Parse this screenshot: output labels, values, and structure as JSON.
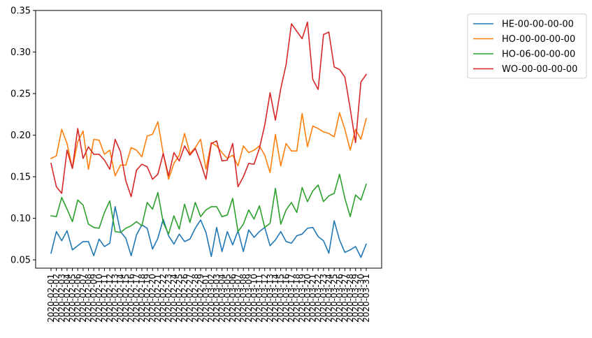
{
  "chart_data": {
    "type": "line",
    "title": "",
    "xlabel": "",
    "ylabel": "",
    "ylim": [
      0.04,
      0.35
    ],
    "yticks": [
      "0.05",
      "0.10",
      "0.15",
      "0.20",
      "0.25",
      "0.30",
      "0.35"
    ],
    "yticks_values": [
      0.05,
      0.1,
      0.15,
      0.2,
      0.25,
      0.3,
      0.35
    ],
    "legend_position": "outside-top-right",
    "x": [
      "2020-02-01",
      "2020-02-02",
      "2020-02-03",
      "2020-02-04",
      "2020-02-05",
      "2020-02-06",
      "2020-02-07",
      "2020-02-08",
      "2020-02-09",
      "2020-02-10",
      "2020-02-11",
      "2020-02-12",
      "2020-02-13",
      "2020-02-14",
      "2020-02-15",
      "2020-02-16",
      "2020-02-17",
      "2020-02-18",
      "2020-02-19",
      "2020-02-20",
      "2020-02-21",
      "2020-02-22",
      "2020-02-23",
      "2020-02-24",
      "2020-02-25",
      "2020-02-26",
      "2020-02-27",
      "2020-02-28",
      "2020-02-29",
      "2020-03-01",
      "2020-03-02",
      "2020-03-03",
      "2020-03-04",
      "2020-03-05",
      "2020-03-06",
      "2020-03-07",
      "2020-03-08",
      "2020-03-09",
      "2020-03-10",
      "2020-03-11",
      "2020-03-12",
      "2020-03-13",
      "2020-03-14",
      "2020-03-15",
      "2020-03-16",
      "2020-03-17",
      "2020-03-18",
      "2020-03-19",
      "2020-03-20",
      "2020-03-21",
      "2020-03-22",
      "2020-03-23",
      "2020-03-24",
      "2020-03-25",
      "2020-03-26",
      "2020-03-27",
      "2020-03-28",
      "2020-03-29",
      "2020-03-30",
      "2020-03-31"
    ],
    "xtick_labels": [
      "2020-02-01",
      "2020-02-02",
      "2020-02-03",
      "2020-02-04",
      "2020-02-05",
      "2020-02-06",
      "2020-02-07",
      "2020-02-08",
      "2020-02-09",
      "2020-02-10",
      "2020-02-11",
      "2020-02-12",
      "2020-02-13",
      "2020-02-14",
      "2020-02-15",
      "2020-02-16",
      "2020-02-17",
      "2020-02-18",
      "2020-02-19",
      "2020-02-20",
      "2020-02-21",
      "2020-02-22",
      "2020-02-23",
      "2020-02-24",
      "2020-02-25",
      "2020-02-26",
      "2020-02-27",
      "2020-02-28",
      "2020-02-29",
      "2020-03-01",
      "2020-03-02",
      "2020-03-03",
      "2020-03-04",
      "2020-03-05",
      "2020-03-06",
      "2020-03-07",
      "2020-03-08",
      "2020-03-09",
      "2020-03-10",
      "2020-03-11",
      "2020-03-12",
      "2020-03-13",
      "2020-03-14",
      "2020-03-15",
      "2020-03-16",
      "2020-03-17",
      "2020-03-18",
      "2020-03-19",
      "2020-03-20",
      "2020-03-21",
      "2020-03-22",
      "2020-03-23",
      "2020-03-24",
      "2020-03-25",
      "2020-03-26",
      "2020-03-27",
      "2020-03-28",
      "2020-03-29",
      "2020-03-30",
      "2020-03-31"
    ],
    "series": [
      {
        "name": "HE-00-00-00-00",
        "color": "#1f77b4",
        "values": [
          0.058,
          0.084,
          0.073,
          0.085,
          0.062,
          0.067,
          0.072,
          0.072,
          0.055,
          0.075,
          0.066,
          0.07,
          0.114,
          0.084,
          0.076,
          0.055,
          0.08,
          0.092,
          0.088,
          0.063,
          0.076,
          0.099,
          0.079,
          0.069,
          0.081,
          0.072,
          0.075,
          0.088,
          0.098,
          0.083,
          0.054,
          0.089,
          0.06,
          0.084,
          0.068,
          0.085,
          0.06,
          0.086,
          0.077,
          0.084,
          0.089,
          0.067,
          0.074,
          0.084,
          0.072,
          0.07,
          0.079,
          0.081,
          0.088,
          0.089,
          0.078,
          0.073,
          0.058,
          0.097,
          0.074,
          0.059,
          0.062,
          0.066,
          0.053,
          0.069
        ]
      },
      {
        "name": "HO-00-00-00-00",
        "color": "#ff7f0e",
        "values": [
          0.172,
          0.175,
          0.207,
          0.19,
          0.16,
          0.192,
          0.205,
          0.159,
          0.195,
          0.194,
          0.177,
          0.182,
          0.151,
          0.164,
          0.164,
          0.185,
          0.182,
          0.174,
          0.199,
          0.201,
          0.216,
          0.178,
          0.147,
          0.166,
          0.176,
          0.202,
          0.178,
          0.185,
          0.195,
          0.159,
          0.191,
          0.187,
          0.179,
          0.172,
          0.176,
          0.163,
          0.187,
          0.179,
          0.182,
          0.187,
          0.176,
          0.155,
          0.201,
          0.163,
          0.19,
          0.181,
          0.181,
          0.226,
          0.186,
          0.211,
          0.208,
          0.204,
          0.202,
          0.198,
          0.227,
          0.207,
          0.182,
          0.207,
          0.195,
          0.22
        ]
      },
      {
        "name": "HO-06-00-00-00",
        "color": "#2ca02c",
        "values": [
          0.103,
          0.102,
          0.125,
          0.111,
          0.096,
          0.122,
          0.116,
          0.093,
          0.089,
          0.088,
          0.107,
          0.121,
          0.084,
          0.083,
          0.088,
          0.091,
          0.096,
          0.091,
          0.119,
          0.111,
          0.131,
          0.095,
          0.081,
          0.103,
          0.087,
          0.117,
          0.095,
          0.119,
          0.102,
          0.11,
          0.114,
          0.114,
          0.102,
          0.104,
          0.124,
          0.084,
          0.093,
          0.11,
          0.099,
          0.115,
          0.089,
          0.094,
          0.136,
          0.093,
          0.11,
          0.119,
          0.107,
          0.137,
          0.12,
          0.133,
          0.14,
          0.12,
          0.127,
          0.13,
          0.153,
          0.124,
          0.102,
          0.128,
          0.122,
          0.141
        ]
      },
      {
        "name": "WO-00-00-00-00",
        "color": "#d62728",
        "values": [
          0.166,
          0.138,
          0.13,
          0.182,
          0.16,
          0.208,
          0.172,
          0.186,
          0.177,
          0.177,
          0.17,
          0.159,
          0.195,
          0.18,
          0.145,
          0.126,
          0.158,
          0.165,
          0.162,
          0.147,
          0.153,
          0.178,
          0.151,
          0.179,
          0.169,
          0.187,
          0.176,
          0.184,
          0.167,
          0.147,
          0.19,
          0.193,
          0.169,
          0.17,
          0.19,
          0.138,
          0.15,
          0.166,
          0.165,
          0.184,
          0.212,
          0.251,
          0.218,
          0.256,
          0.285,
          0.334,
          0.325,
          0.316,
          0.336,
          0.267,
          0.255,
          0.321,
          0.324,
          0.282,
          0.279,
          0.27,
          0.232,
          0.191,
          0.264,
          0.273
        ]
      }
    ]
  }
}
